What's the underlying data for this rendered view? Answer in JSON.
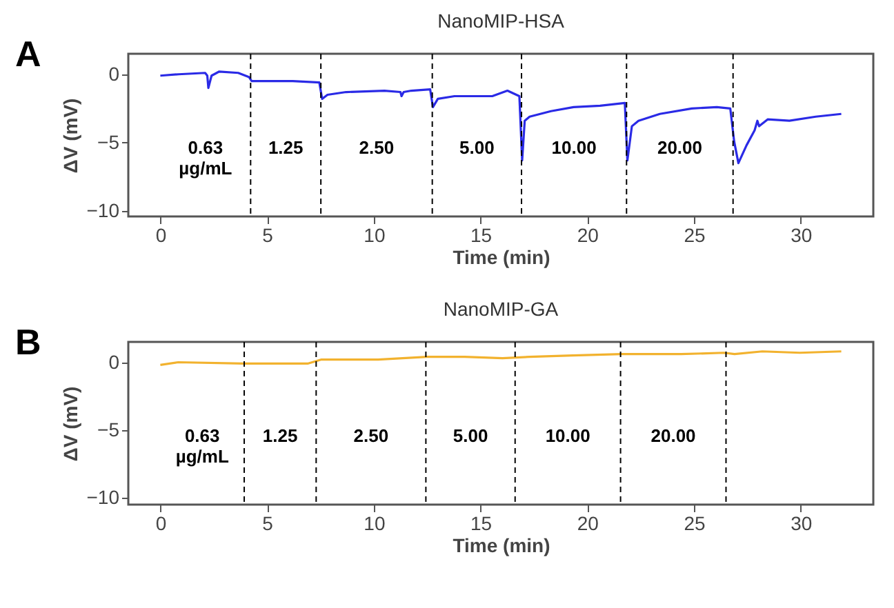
{
  "chart_data": [
    {
      "type": "line",
      "title": "NanoMIP-HSA",
      "xlabel": "Time (min)",
      "ylabel": "ΔV (mV)",
      "xlim": [
        -1.5,
        33.4
      ],
      "ylim": [
        -10.4,
        1.5
      ],
      "xticks": [
        0,
        5,
        10,
        15,
        20,
        25,
        30
      ],
      "yticks": [
        -10,
        -5,
        0
      ],
      "grid": false,
      "x": [
        0,
        0.86,
        2.1,
        2.2,
        2.25,
        2.4,
        2.76,
        3.65,
        4.15,
        4.28,
        4.66,
        6.2,
        7.45,
        7.58,
        7.83,
        8.7,
        10.5,
        11.25,
        11.3,
        11.4,
        11.76,
        12.64,
        12.77,
        13.0,
        13.78,
        15.55,
        16.26,
        16.82,
        16.95,
        17.07,
        17.3,
        18.3,
        19.36,
        20.6,
        21.76,
        21.88,
        22.09,
        22.4,
        23.4,
        24.9,
        26.07,
        26.7,
        26.88,
        27.08,
        27.46,
        27.84,
        27.97,
        28.05,
        28.45,
        29.47,
        30.7,
        31.9
      ],
      "series": [
        {
          "color": "#2a2ae6",
          "line_style": "solid",
          "values": [
            -0.1,
            0,
            0.1,
            -0.1,
            -1.0,
            -0.1,
            0.2,
            0.1,
            -0.2,
            -0.5,
            -0.5,
            -0.5,
            -0.6,
            -1.8,
            -1.5,
            -1.3,
            -1.2,
            -1.3,
            -1.6,
            -1.3,
            -1.2,
            -1.1,
            -2.4,
            -1.8,
            -1.6,
            -1.6,
            -1.2,
            -1.6,
            -6.3,
            -3.4,
            -3.1,
            -2.7,
            -2.4,
            -2.3,
            -2.1,
            -6.3,
            -3.8,
            -3.4,
            -2.9,
            -2.5,
            -2.4,
            -2.5,
            -4.9,
            -6.5,
            -5.2,
            -4.1,
            -3.4,
            -3.8,
            -3.3,
            -3.4,
            -3.1,
            -2.9
          ]
        }
      ],
      "ref_lines": [
        {
          "axis": "x",
          "value": 4.23,
          "color": "#000000",
          "line_style": "dashed"
        },
        {
          "axis": "x",
          "value": 7.52,
          "color": "#000000",
          "line_style": "dashed"
        },
        {
          "axis": "x",
          "value": 12.74,
          "color": "#000000",
          "line_style": "dashed"
        },
        {
          "axis": "x",
          "value": 16.92,
          "color": "#000000",
          "line_style": "dashed"
        },
        {
          "axis": "x",
          "value": 21.84,
          "color": "#000000",
          "line_style": "dashed"
        },
        {
          "axis": "x",
          "value": 26.83,
          "color": "#000000",
          "line_style": "dashed"
        }
      ],
      "annotations": [
        "A",
        "0.63\nµg/mL",
        "1.25",
        "2.50",
        "5.00",
        "10.00",
        "20.00"
      ]
    },
    {
      "type": "line",
      "title": "NanoMIP-GA",
      "xlabel": "Time (min)",
      "ylabel": "ΔV (mV)",
      "xlim": [
        -1.5,
        33.4
      ],
      "ylim": [
        -10.5,
        1.5
      ],
      "xticks": [
        0,
        5,
        10,
        15,
        20,
        25,
        30
      ],
      "yticks": [
        -10,
        -5,
        0
      ],
      "grid": false,
      "x": [
        0,
        0.84,
        3.88,
        6.9,
        7.55,
        8.2,
        10.2,
        12.5,
        14.26,
        16.03,
        17.3,
        19.33,
        21.6,
        23.1,
        24.4,
        26.4,
        26.9,
        28.2,
        29.96,
        31.9
      ],
      "series": [
        {
          "color": "#f2b22e",
          "line_style": "solid",
          "values": [
            -0.2,
            0,
            -0.1,
            -0.1,
            0.2,
            0.2,
            0.2,
            0.4,
            0.4,
            0.3,
            0.4,
            0.5,
            0.6,
            0.6,
            0.6,
            0.7,
            0.6,
            0.8,
            0.7,
            0.8
          ]
        }
      ],
      "ref_lines": [
        {
          "axis": "x",
          "value": 3.93,
          "color": "#000000",
          "line_style": "dashed"
        },
        {
          "axis": "x",
          "value": 7.3,
          "color": "#000000",
          "line_style": "dashed"
        },
        {
          "axis": "x",
          "value": 12.44,
          "color": "#000000",
          "line_style": "dashed"
        },
        {
          "axis": "x",
          "value": 16.62,
          "color": "#000000",
          "line_style": "dashed"
        },
        {
          "axis": "x",
          "value": 21.56,
          "color": "#000000",
          "line_style": "dashed"
        },
        {
          "axis": "x",
          "value": 26.5,
          "color": "#000000",
          "line_style": "dashed"
        }
      ],
      "annotations": [
        "B",
        "0.63\nµg/mL",
        "1.25",
        "2.50",
        "5.00",
        "10.00",
        "20.00"
      ]
    }
  ]
}
